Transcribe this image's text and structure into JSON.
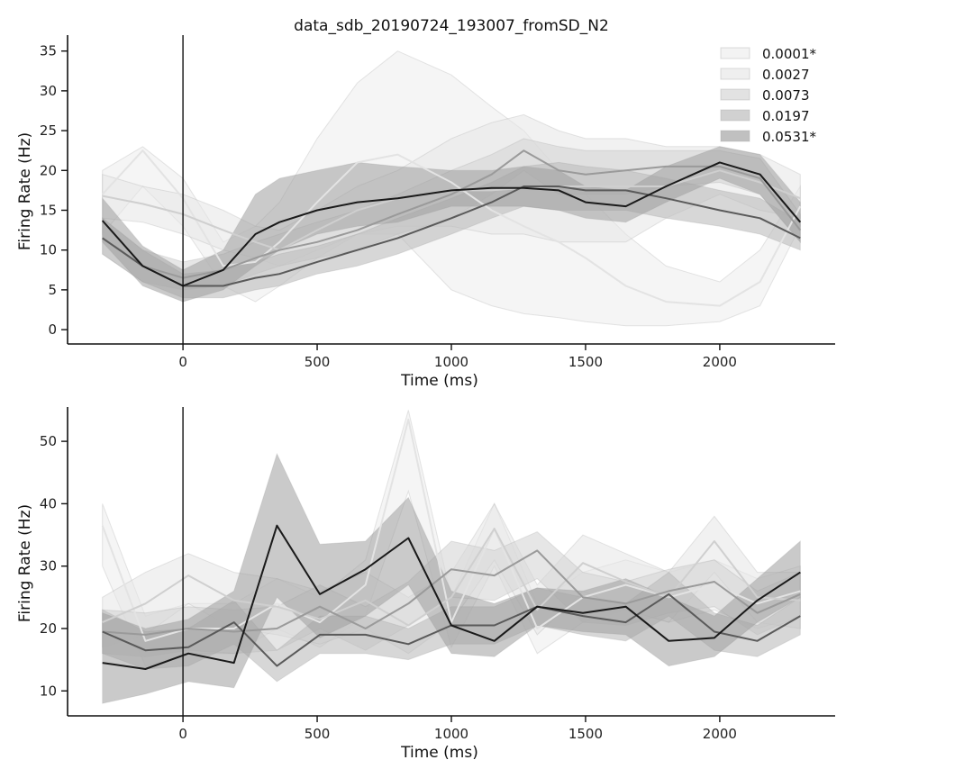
{
  "figure": {
    "title": "data_sdb_20190724_193007_fromSD_N2"
  },
  "legend": {
    "placement": "top-right",
    "entries": [
      "0.0001*",
      "0.0027",
      "0.0073",
      "0.0197",
      "0.0531*"
    ]
  },
  "series_colors": [
    "#e3e3e3",
    "#cfcfcf",
    "#9a9a9a",
    "#5a5a5a",
    "#1a1a1a"
  ],
  "series_band_colors": [
    "#ececec",
    "#e6e6e6",
    "#d6d6d6",
    "#bdbdbd",
    "#9e9e9e"
  ],
  "chart_data": [
    {
      "type": "line",
      "title": "data_sdb_20190724_193007_fromSD_N2",
      "xlabel": "Time (ms)",
      "ylabel": "Firing Rate (Hz)",
      "xlim": [
        -430,
        2430
      ],
      "ylim": [
        -1.8,
        37
      ],
      "xticks": [
        0,
        500,
        1000,
        1500,
        2000
      ],
      "yticks": [
        0,
        5,
        10,
        15,
        20,
        25,
        30,
        35
      ],
      "vline_x": 0,
      "x": [
        -300,
        -150,
        0,
        150,
        270,
        360,
        500,
        650,
        800,
        1000,
        1150,
        1270,
        1400,
        1500,
        1650,
        1800,
        2000,
        2150,
        2300
      ],
      "series": [
        {
          "name": "0.0001*",
          "values": [
            17,
            22.5,
            16.5,
            8,
            8.5,
            11,
            16,
            21,
            22,
            18.5,
            15,
            13,
            11,
            9,
            5.5,
            3.5,
            3,
            6,
            15.5
          ],
          "lower": [
            12,
            18,
            13,
            5.5,
            3.5,
            5.5,
            9,
            12,
            12,
            5,
            3,
            2,
            1.5,
            1,
            0.5,
            0.5,
            1,
            3,
            13
          ],
          "upper": [
            20,
            23,
            19,
            11,
            13,
            16,
            24,
            31,
            35,
            32,
            28,
            25,
            20,
            17,
            12,
            8,
            6,
            10,
            18
          ]
        },
        {
          "name": "0.0027",
          "values": [
            16.8,
            15.8,
            14.5,
            12.5,
            11,
            10,
            12.5,
            15,
            16.5,
            17.5,
            17.5,
            17.8,
            18,
            18,
            18,
            18,
            20,
            18.5,
            16.5
          ],
          "lower": [
            14,
            13.5,
            12,
            10,
            9,
            8,
            10,
            12,
            13,
            13,
            12,
            12,
            11,
            11,
            11,
            14,
            17,
            15,
            14
          ],
          "upper": [
            19.5,
            18,
            17,
            15,
            13,
            12.5,
            15,
            18,
            20,
            24,
            26,
            27,
            25,
            24,
            24,
            23,
            23,
            22,
            19.5
          ]
        },
        {
          "name": "0.0073",
          "values": [
            11.5,
            8,
            6.5,
            7.5,
            9,
            10,
            11,
            12.5,
            14.5,
            17,
            19.5,
            22.5,
            20,
            19.5,
            20,
            20.5,
            20.5,
            19,
            12.5
          ],
          "lower": [
            9.5,
            6,
            5,
            5.5,
            7,
            8,
            9,
            10,
            12,
            14,
            17,
            20,
            17,
            17,
            17,
            18,
            18.5,
            17,
            11
          ],
          "upper": [
            14,
            10,
            8.5,
            9.5,
            11,
            12,
            13.5,
            15,
            17,
            20,
            22,
            24,
            23,
            22.5,
            22.5,
            22.5,
            22.5,
            21.5,
            14.5
          ]
        },
        {
          "name": "0.0197",
          "values": [
            11.5,
            8,
            5.5,
            5.5,
            6.5,
            7,
            8.5,
            10,
            11.5,
            14,
            16,
            18,
            18,
            17.5,
            17.5,
            16.5,
            15,
            14,
            11.5
          ],
          "lower": [
            9.5,
            6,
            4,
            4,
            5,
            5.5,
            7,
            8,
            9.5,
            12,
            14,
            15.5,
            15,
            15,
            15,
            14,
            13,
            12,
            10
          ],
          "upper": [
            14,
            10,
            7,
            7.5,
            8.5,
            9.5,
            10.5,
            12,
            14,
            16.5,
            18.5,
            20.5,
            21,
            20.5,
            20,
            19,
            17.5,
            16.5,
            13.5
          ]
        },
        {
          "name": "0.0531*",
          "values": [
            13.7,
            8,
            5.5,
            7.5,
            12,
            13.5,
            15,
            16,
            16.5,
            17.5,
            17.8,
            17.8,
            17.5,
            16,
            15.5,
            18,
            21,
            19.5,
            13.5
          ],
          "lower": [
            11,
            5.5,
            3.5,
            5,
            8,
            10,
            12,
            13,
            13.5,
            15.5,
            15.5,
            15.5,
            15,
            14,
            13.5,
            16,
            19,
            17,
            11
          ],
          "upper": [
            16.5,
            10.5,
            7.5,
            10,
            17,
            19,
            20,
            21,
            20.5,
            20,
            20,
            20.5,
            20,
            18,
            17.5,
            20.5,
            23,
            22,
            16
          ]
        }
      ]
    },
    {
      "type": "line",
      "title": "",
      "xlabel": "Time (ms)",
      "ylabel": "Firing Rate (Hz)",
      "xlim": [
        -430,
        2430
      ],
      "ylim": [
        6,
        55.5
      ],
      "xticks": [
        0,
        500,
        1000,
        1500,
        2000
      ],
      "yticks": [
        10,
        20,
        30,
        40,
        50
      ],
      "vline_x": 0,
      "x": [
        -300,
        -140,
        20,
        190,
        350,
        510,
        680,
        840,
        1000,
        1160,
        1320,
        1490,
        1650,
        1810,
        1980,
        2140,
        2300
      ],
      "series": [
        {
          "name": "0.0001*",
          "values": [
            36.5,
            18,
            20,
            20,
            24,
            21,
            27,
            53.5,
            21,
            36,
            20,
            25,
            27,
            25,
            27,
            24,
            26
          ],
          "lower": [
            30,
            14,
            16,
            16,
            20,
            17,
            22,
            42,
            17,
            30,
            16,
            21,
            23,
            21,
            23,
            20,
            22
          ],
          "upper": [
            40,
            22,
            24,
            24,
            28,
            25,
            31,
            55,
            25,
            40,
            24,
            29,
            31,
            29,
            31,
            28,
            30
          ]
        },
        {
          "name": "0.0027",
          "values": [
            21,
            24,
            28.5,
            24.5,
            23.5,
            21.5,
            24.5,
            20.5,
            25,
            36,
            23,
            30.5,
            27.5,
            25,
            34,
            25,
            24.5
          ],
          "lower": [
            17,
            19,
            24,
            20,
            19,
            17.5,
            20,
            16,
            21,
            31,
            19,
            26,
            23,
            21,
            29,
            21,
            20
          ],
          "upper": [
            25,
            29,
            32,
            29,
            28,
            26,
            29,
            25,
            29,
            40,
            27,
            35,
            32,
            29,
            38,
            29,
            29
          ]
        },
        {
          "name": "0.0073",
          "values": [
            19.5,
            19,
            20,
            19.5,
            20,
            23.5,
            20,
            24,
            29.5,
            28.5,
            32.5,
            25,
            24,
            26,
            27.5,
            22.5,
            25.5
          ],
          "lower": [
            16,
            15.5,
            16.5,
            16,
            16.5,
            20,
            16.5,
            20.5,
            25,
            24.5,
            28,
            21,
            20.5,
            22.5,
            23.5,
            19,
            22
          ],
          "upper": [
            23,
            22.5,
            23.5,
            23,
            23.5,
            27,
            23.5,
            27.5,
            34,
            32.5,
            35.5,
            29,
            27.5,
            29.5,
            31,
            26,
            29
          ]
        },
        {
          "name": "0.0197",
          "values": [
            19.5,
            16.5,
            17,
            21,
            14,
            19,
            19,
            17.5,
            20.5,
            20.5,
            23.5,
            22,
            21,
            25.5,
            19.5,
            18,
            22
          ],
          "lower": [
            16,
            13.5,
            14,
            17.5,
            11.5,
            16,
            16,
            15,
            17.5,
            17.5,
            20.5,
            19,
            18,
            22,
            16.5,
            15.5,
            19
          ],
          "upper": [
            23,
            19.5,
            20,
            24.5,
            16.5,
            22,
            22,
            20,
            23.5,
            23.5,
            26.5,
            25,
            24,
            29,
            22.5,
            20.5,
            25
          ]
        },
        {
          "name": "0.0531*",
          "values": [
            14.5,
            13.5,
            16,
            14.5,
            36.5,
            25.5,
            29.5,
            34.5,
            20.5,
            18,
            23.5,
            22.5,
            23.5,
            18,
            18.5,
            24.5,
            29
          ],
          "lower": [
            8,
            9.5,
            11.5,
            10.5,
            25,
            18.5,
            22,
            27,
            16,
            15.5,
            20.5,
            19.5,
            19,
            14,
            15.5,
            21,
            25
          ],
          "upper": [
            22.5,
            20,
            21.5,
            26,
            48,
            33.5,
            34,
            41,
            26,
            24,
            26.5,
            26,
            28,
            25,
            22,
            28,
            34
          ]
        }
      ]
    }
  ]
}
